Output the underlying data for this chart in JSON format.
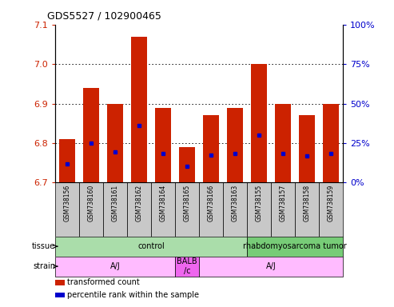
{
  "title": "GDS5527 / 102900465",
  "samples": [
    "GSM738156",
    "GSM738160",
    "GSM738161",
    "GSM738162",
    "GSM738164",
    "GSM738165",
    "GSM738166",
    "GSM738163",
    "GSM738155",
    "GSM738157",
    "GSM738158",
    "GSM738159"
  ],
  "bar_tops": [
    6.81,
    6.94,
    6.9,
    7.07,
    6.89,
    6.79,
    6.87,
    6.89,
    7.0,
    6.9,
    6.87,
    6.9
  ],
  "bar_bottom": 6.7,
  "blue_positions": [
    6.748,
    6.8,
    6.778,
    6.845,
    6.773,
    6.742,
    6.77,
    6.773,
    6.82,
    6.773,
    6.768,
    6.773
  ],
  "ylim_left": [
    6.7,
    7.1
  ],
  "yticks_left": [
    6.7,
    6.8,
    6.9,
    7.0,
    7.1
  ],
  "yticks_right": [
    0,
    25,
    50,
    75,
    100
  ],
  "grid_yticks": [
    6.8,
    6.9,
    7.0
  ],
  "bar_color": "#cc2200",
  "blue_color": "#0000cc",
  "bg_sample_labels": "#c8c8c8",
  "tissue_labels": [
    {
      "label": "control",
      "start": 0,
      "end": 8,
      "color": "#aaddaa"
    },
    {
      "label": "rhabdomyosarcoma tumor",
      "start": 8,
      "end": 12,
      "color": "#77cc77"
    }
  ],
  "strain_labels": [
    {
      "label": "A/J",
      "start": 0,
      "end": 5,
      "color": "#ffbbff"
    },
    {
      "label": "BALB\n/c",
      "start": 5,
      "end": 6,
      "color": "#ee66ee"
    },
    {
      "label": "A/J",
      "start": 6,
      "end": 12,
      "color": "#ffbbff"
    }
  ],
  "legend_items": [
    {
      "color": "#cc2200",
      "label": "transformed count"
    },
    {
      "color": "#0000cc",
      "label": "percentile rank within the sample"
    }
  ],
  "bar_width": 0.65
}
